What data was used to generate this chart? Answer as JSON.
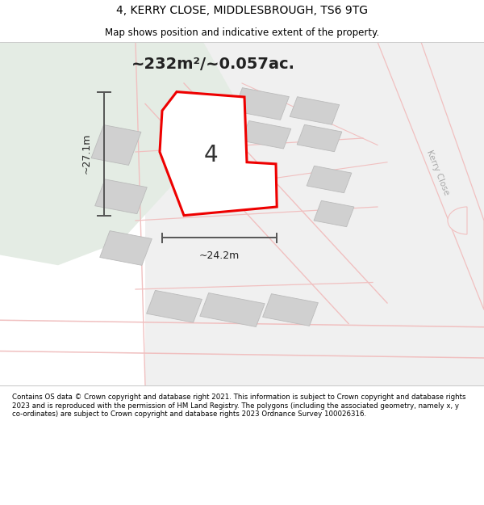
{
  "title_line1": "4, KERRY CLOSE, MIDDLESBROUGH, TS6 9TG",
  "title_line2": "Map shows position and indicative extent of the property.",
  "area_text": "~232m²/~0.057ac.",
  "dim_width": "~24.2m",
  "dim_height": "~27.1m",
  "label_number": "4",
  "kerry_close_label": "Kerry Close",
  "footer_text": "Contains OS data © Crown copyright and database right 2021. This information is subject to Crown copyright and database rights 2023 and is reproduced with the permission of HM Land Registry. The polygons (including the associated geometry, namely x, y co-ordinates) are subject to Crown copyright and database rights 2023 Ordnance Survey 100026316.",
  "bg_map_color": "#edf2ed",
  "road_color": "#f0c0c0",
  "road_color2": "#e8a8a8",
  "building_color": "#d0d0d0",
  "building_edge": "#bbbbbb",
  "highlight_color": "#ee0000",
  "highlight_fill": "#ffffff",
  "dim_line_color": "#555555",
  "map_bg_right": "#efefef",
  "green_color": "#e4ece4"
}
